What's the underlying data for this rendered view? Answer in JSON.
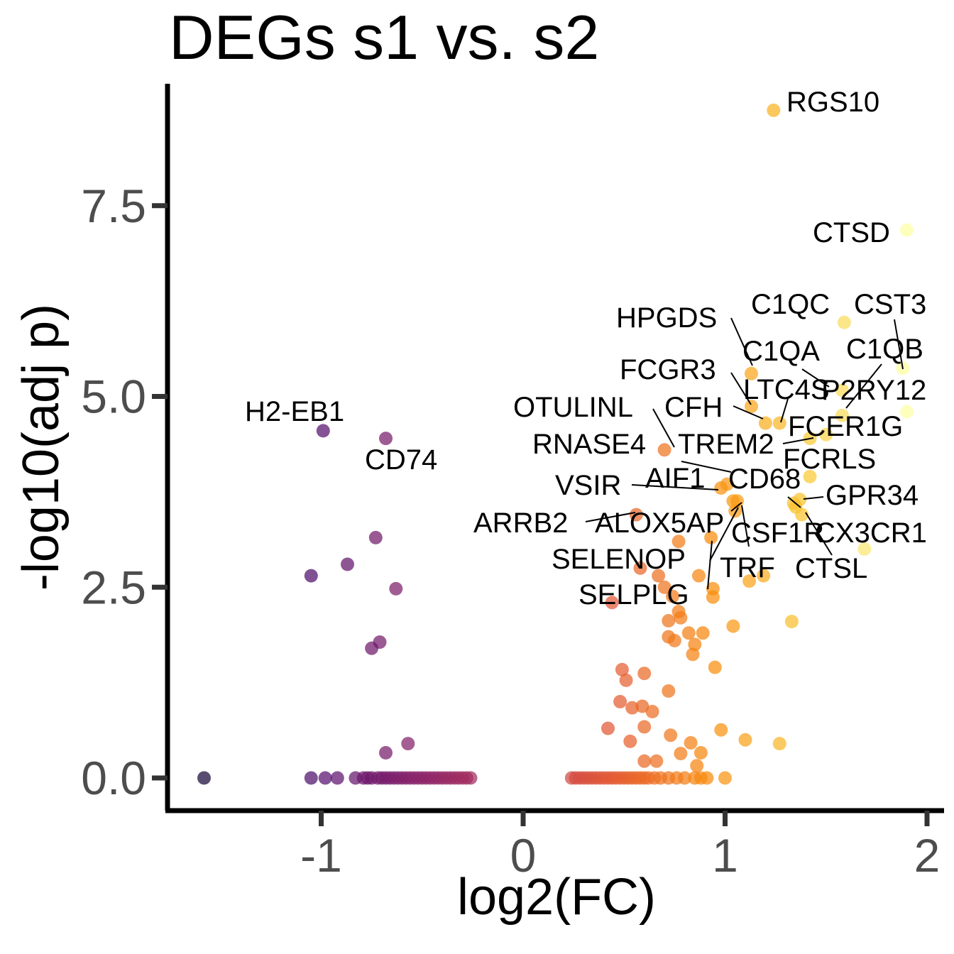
{
  "chart_data": {
    "type": "scatter",
    "title": "DEGs s1 vs. s2",
    "xlabel": "log2(FC)",
    "ylabel": "-log10(adj p)",
    "xlim": [
      -1.7,
      2.05
    ],
    "ylim": [
      -0.42,
      9.0
    ],
    "x_ticks": [
      {
        "value": -1,
        "label": "-1"
      },
      {
        "value": 0,
        "label": "0"
      },
      {
        "value": 1,
        "label": "1"
      },
      {
        "value": 2,
        "label": "2"
      }
    ],
    "y_ticks": [
      {
        "value": 0,
        "label": "0.0"
      },
      {
        "value": 2.5,
        "label": "2.5"
      },
      {
        "value": 5,
        "label": "5.0"
      },
      {
        "value": 7.5,
        "label": "7.5"
      }
    ],
    "grid": false,
    "legend": "none",
    "colormap": "inferno",
    "points": [
      [
        -1.58,
        0.0
      ],
      [
        -1.05,
        0.0
      ],
      [
        -0.98,
        0.0
      ],
      [
        -0.92,
        0.0
      ],
      [
        -0.83,
        0.0
      ],
      [
        -0.79,
        0.0
      ],
      [
        -0.77,
        0.0
      ],
      [
        -0.75,
        0.0
      ],
      [
        -0.72,
        0.0
      ],
      [
        -0.7,
        0.0
      ],
      [
        -0.68,
        0.0
      ],
      [
        -0.66,
        0.0
      ],
      [
        -0.64,
        0.0
      ],
      [
        -0.62,
        0.0
      ],
      [
        -0.6,
        0.0
      ],
      [
        -0.58,
        0.0
      ],
      [
        -0.56,
        0.0
      ],
      [
        -0.54,
        0.0
      ],
      [
        -0.52,
        0.0
      ],
      [
        -0.5,
        0.0
      ],
      [
        -0.48,
        0.0
      ],
      [
        -0.46,
        0.0
      ],
      [
        -0.44,
        0.0
      ],
      [
        -0.42,
        0.0
      ],
      [
        -0.4,
        0.0
      ],
      [
        -0.38,
        0.0
      ],
      [
        -0.36,
        0.0
      ],
      [
        -0.34,
        0.0
      ],
      [
        -0.32,
        0.0
      ],
      [
        -0.3,
        0.0
      ],
      [
        -0.28,
        0.0
      ],
      [
        -0.26,
        0.0
      ],
      [
        -0.99,
        4.55
      ],
      [
        -0.68,
        4.45
      ],
      [
        -0.73,
        3.15
      ],
      [
        -0.87,
        2.8
      ],
      [
        -1.05,
        2.65
      ],
      [
        -0.63,
        2.48
      ],
      [
        -0.71,
        1.78
      ],
      [
        -0.75,
        1.7
      ],
      [
        -0.57,
        0.45
      ],
      [
        -0.68,
        0.33
      ],
      [
        0.24,
        0.0
      ],
      [
        0.26,
        0.0
      ],
      [
        0.28,
        0.0
      ],
      [
        0.3,
        0.0
      ],
      [
        0.32,
        0.0
      ],
      [
        0.34,
        0.0
      ],
      [
        0.36,
        0.0
      ],
      [
        0.38,
        0.0
      ],
      [
        0.4,
        0.0
      ],
      [
        0.42,
        0.0
      ],
      [
        0.44,
        0.0
      ],
      [
        0.46,
        0.0
      ],
      [
        0.48,
        0.0
      ],
      [
        0.5,
        0.0
      ],
      [
        0.52,
        0.0
      ],
      [
        0.54,
        0.0
      ],
      [
        0.56,
        0.0
      ],
      [
        0.58,
        0.0
      ],
      [
        0.6,
        0.0
      ],
      [
        0.62,
        0.0
      ],
      [
        0.65,
        0.0
      ],
      [
        0.68,
        0.0
      ],
      [
        0.72,
        0.0
      ],
      [
        0.76,
        0.0
      ],
      [
        0.8,
        0.0
      ],
      [
        0.85,
        0.0
      ],
      [
        0.88,
        0.0
      ],
      [
        0.91,
        0.0
      ],
      [
        1.0,
        0.0
      ],
      [
        0.42,
        0.65
      ],
      [
        0.49,
        1.42
      ],
      [
        0.51,
        1.28
      ],
      [
        0.48,
        1.0
      ],
      [
        0.53,
        0.48
      ],
      [
        0.54,
        0.92
      ],
      [
        0.6,
        0.22
      ],
      [
        0.6,
        1.37
      ],
      [
        0.59,
        0.94
      ],
      [
        0.6,
        0.67
      ],
      [
        0.66,
        0.22
      ],
      [
        0.64,
        0.87
      ],
      [
        0.73,
        0.56
      ],
      [
        0.72,
        1.14
      ],
      [
        0.78,
        0.32
      ],
      [
        0.83,
        0.46
      ],
      [
        0.86,
        0.16
      ],
      [
        0.88,
        0.33
      ],
      [
        0.72,
        1.85
      ],
      [
        0.75,
        1.8
      ],
      [
        0.77,
        2.18
      ],
      [
        0.78,
        2.1
      ],
      [
        0.82,
        1.9
      ],
      [
        0.84,
        1.62
      ],
      [
        0.89,
        1.9
      ],
      [
        0.85,
        1.75
      ],
      [
        0.72,
        2.06
      ],
      [
        0.95,
        1.45
      ],
      [
        1.04,
        1.99
      ],
      [
        1.1,
        0.5
      ],
      [
        1.27,
        0.45
      ],
      [
        0.98,
        0.63
      ],
      [
        0.67,
        2.65
      ],
      [
        0.7,
        2.5
      ],
      [
        0.44,
        2.3
      ],
      [
        0.58,
        2.75
      ],
      [
        0.77,
        3.1
      ],
      [
        0.94,
        2.48
      ],
      [
        0.94,
        2.37
      ],
      [
        0.93,
        3.15
      ],
      [
        0.87,
        2.65
      ],
      [
        0.74,
        2.38
      ],
      [
        1.12,
        2.58
      ],
      [
        1.19,
        2.65
      ],
      [
        1.33,
        2.05
      ],
      [
        1.69,
        3.0
      ],
      [
        1.24,
        8.75
      ],
      [
        1.9,
        7.18
      ],
      [
        1.59,
        5.97
      ],
      [
        1.88,
        5.37
      ],
      [
        1.9,
        4.8
      ],
      [
        1.13,
        5.3
      ],
      [
        1.13,
        4.87
      ],
      [
        1.2,
        4.65
      ],
      [
        1.27,
        4.65
      ],
      [
        1.58,
        5.08
      ],
      [
        1.58,
        4.75
      ],
      [
        1.5,
        4.5
      ],
      [
        1.42,
        4.45
      ],
      [
        1.42,
        3.95
      ],
      [
        1.37,
        3.65
      ],
      [
        1.35,
        3.55
      ],
      [
        1.38,
        3.45
      ],
      [
        1.34,
        3.6
      ],
      [
        0.7,
        4.3
      ],
      [
        0.98,
        3.8
      ],
      [
        1.01,
        3.85
      ],
      [
        1.06,
        3.63
      ],
      [
        1.04,
        3.63
      ],
      [
        1.05,
        3.5
      ],
      [
        0.56,
        3.45
      ]
    ],
    "annotations": [
      {
        "text": "RGS10"
      },
      {
        "text": "CTSD"
      },
      {
        "text": "C1QC"
      },
      {
        "text": "CST3"
      },
      {
        "text": "HPGDS"
      },
      {
        "text": "C1QA"
      },
      {
        "text": "C1QB"
      },
      {
        "text": "FCGR3"
      },
      {
        "text": "LTC4S"
      },
      {
        "text": "P2RY12"
      },
      {
        "text": "OTULINL"
      },
      {
        "text": "CFH"
      },
      {
        "text": "FCER1G"
      },
      {
        "text": "RNASE4"
      },
      {
        "text": "TREM2"
      },
      {
        "text": "FCRLS"
      },
      {
        "text": "AIF1"
      },
      {
        "text": "CD68"
      },
      {
        "text": "VSIR"
      },
      {
        "text": "GPR34"
      },
      {
        "text": "ARRB2"
      },
      {
        "text": "ALOX5AP"
      },
      {
        "text": "CSF1R"
      },
      {
        "text": "CX3CR1"
      },
      {
        "text": "SELENOP"
      },
      {
        "text": "TRF"
      },
      {
        "text": "CTSL"
      },
      {
        "text": "SELPLG"
      },
      {
        "text": "H2-EB1"
      },
      {
        "text": "CD74"
      }
    ]
  }
}
